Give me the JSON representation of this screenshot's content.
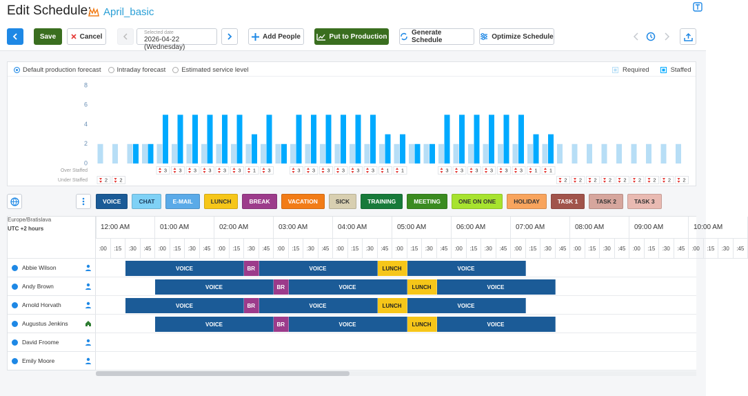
{
  "header": {
    "title": "Edit Schedule:",
    "schedule_name": "April_basic"
  },
  "toolbar": {
    "save": "Save",
    "cancel": "Cancel",
    "selected_date_label": "Selected date",
    "selected_date": "2026-04-22 (Wednesday)",
    "add_people": "Add People",
    "put_to_production": "Put to Production",
    "generate_schedule": "Generate Schedule",
    "optimize_schedule": "Optimize Schedule"
  },
  "forecast_options": {
    "options": [
      "Default production forecast",
      "Intraday forecast",
      "Estimated service level"
    ],
    "selected": 0
  },
  "chart_data": {
    "type": "bar",
    "ylim": [
      0,
      8
    ],
    "yticks": [
      0,
      2,
      4,
      6,
      8
    ],
    "series": [
      {
        "name": "Required",
        "color": "#b7def6",
        "values": [
          2,
          2,
          2,
          2,
          2,
          2,
          2,
          2,
          2,
          2,
          2,
          2,
          2,
          2,
          2,
          2,
          2,
          2,
          2,
          2,
          2,
          2,
          2,
          2,
          2,
          2,
          2,
          2,
          2,
          2,
          2,
          2,
          2,
          2,
          2,
          2,
          2,
          2,
          2,
          2
        ]
      },
      {
        "name": "Staffed",
        "color": "#00aaff",
        "values": [
          0,
          0,
          2,
          2,
          5,
          5,
          5,
          5,
          5,
          5,
          3,
          5,
          2,
          5,
          5,
          5,
          5,
          5,
          5,
          3,
          3,
          2,
          2,
          5,
          5,
          5,
          5,
          5,
          5,
          3,
          3,
          0,
          0,
          0,
          0,
          0,
          0,
          0,
          0,
          0
        ]
      }
    ],
    "over_staffed": {
      "label": "Over Staffed",
      "values": [
        null,
        null,
        null,
        null,
        3,
        3,
        3,
        3,
        3,
        3,
        1,
        3,
        null,
        3,
        3,
        3,
        3,
        3,
        3,
        1,
        1,
        null,
        null,
        3,
        3,
        3,
        3,
        3,
        3,
        1,
        1,
        null,
        null,
        null,
        null,
        null,
        null,
        null,
        null,
        null
      ]
    },
    "under_staffed": {
      "label": "Under Staffed",
      "values": [
        2,
        2,
        null,
        null,
        null,
        null,
        null,
        null,
        null,
        null,
        null,
        null,
        null,
        null,
        null,
        null,
        null,
        null,
        null,
        null,
        null,
        null,
        null,
        null,
        null,
        null,
        null,
        null,
        null,
        null,
        null,
        2,
        2,
        2,
        2,
        2,
        2,
        2,
        2,
        2
      ]
    }
  },
  "activities": [
    {
      "name": "VOICE",
      "color": "#1b5b97",
      "text": "#ffffff"
    },
    {
      "name": "CHAT",
      "color": "#7fd1f6",
      "text": "#1b3b5a"
    },
    {
      "name": "E-MAIL",
      "color": "#5aaae8",
      "text": "#ffffff"
    },
    {
      "name": "LUNCH",
      "color": "#f6c619",
      "text": "#333333"
    },
    {
      "name": "BREAK",
      "color": "#9c3b8b",
      "text": "#ffffff"
    },
    {
      "name": "VACATION",
      "color": "#f27c17",
      "text": "#ffffff"
    },
    {
      "name": "SICK",
      "color": "#d8cfb1",
      "text": "#333333"
    },
    {
      "name": "TRAINING",
      "color": "#177a3a",
      "text": "#ffffff"
    },
    {
      "name": "MEETING",
      "color": "#3a8b20",
      "text": "#ffffff"
    },
    {
      "name": "ONE ON ONE",
      "color": "#a7e32f",
      "text": "#333333"
    },
    {
      "name": "HOLIDAY",
      "color": "#f8a45d",
      "text": "#333333"
    },
    {
      "name": "TASK 1",
      "color": "#a1544b",
      "text": "#ffffff"
    },
    {
      "name": "TASK 2",
      "color": "#d6a69d",
      "text": "#333333"
    },
    {
      "name": "TASK 3",
      "color": "#e9bab2",
      "text": "#333333"
    }
  ],
  "schedule": {
    "timezone": "Europe/Bratislava",
    "utc_offset": "UTC +2 hours",
    "hours": [
      "12:00 AM",
      "01:00 AM",
      "02:00 AM",
      "03:00 AM",
      "04:00 AM",
      "05:00 AM",
      "06:00 AM",
      "07:00 AM",
      "08:00 AM",
      "09:00 AM",
      "10:00 AM"
    ],
    "quarters": [
      ":00",
      ":15",
      ":30",
      ":45"
    ],
    "agents": [
      {
        "name": "Abbie Wilson",
        "icon": "person",
        "shifts": [
          {
            "label": "VOICE",
            "color": "#1b5b97",
            "start": 0.5,
            "end": 2.5
          },
          {
            "label": "BR",
            "color": "#9c3b8b",
            "start": 2.5,
            "end": 2.75
          },
          {
            "label": "VOICE",
            "color": "#1b5b97",
            "start": 2.75,
            "end": 4.75
          },
          {
            "label": "LUNCH",
            "color": "#f6c619",
            "start": 4.75,
            "end": 5.25
          },
          {
            "label": "VOICE",
            "color": "#1b5b97",
            "start": 5.25,
            "end": 7.25
          }
        ]
      },
      {
        "name": "Andy Brown",
        "icon": "person",
        "shifts": [
          {
            "label": "VOICE",
            "color": "#1b5b97",
            "start": 1,
            "end": 3
          },
          {
            "label": "BR",
            "color": "#9c3b8b",
            "start": 3,
            "end": 3.25
          },
          {
            "label": "VOICE",
            "color": "#1b5b97",
            "start": 3.25,
            "end": 5.25
          },
          {
            "label": "LUNCH",
            "color": "#f6c619",
            "start": 5.25,
            "end": 5.75
          },
          {
            "label": "VOICE",
            "color": "#1b5b97",
            "start": 5.75,
            "end": 7.75
          }
        ]
      },
      {
        "name": "Arnold Horvath",
        "icon": "person",
        "shifts": [
          {
            "label": "VOICE",
            "color": "#1b5b97",
            "start": 0.5,
            "end": 2.5
          },
          {
            "label": "BR",
            "color": "#9c3b8b",
            "start": 2.5,
            "end": 2.75
          },
          {
            "label": "VOICE",
            "color": "#1b5b97",
            "start": 2.75,
            "end": 4.75
          },
          {
            "label": "LUNCH",
            "color": "#f6c619",
            "start": 4.75,
            "end": 5.25
          },
          {
            "label": "VOICE",
            "color": "#1b5b97",
            "start": 5.25,
            "end": 7.25
          }
        ]
      },
      {
        "name": "Augustus Jenkins",
        "icon": "home",
        "shifts": [
          {
            "label": "VOICE",
            "color": "#1b5b97",
            "start": 1,
            "end": 3
          },
          {
            "label": "BR",
            "color": "#9c3b8b",
            "start": 3,
            "end": 3.25
          },
          {
            "label": "VOICE",
            "color": "#1b5b97",
            "start": 3.25,
            "end": 5.25
          },
          {
            "label": "LUNCH",
            "color": "#f6c619",
            "start": 5.25,
            "end": 5.75
          },
          {
            "label": "VOICE",
            "color": "#1b5b97",
            "start": 5.75,
            "end": 7.75
          }
        ]
      },
      {
        "name": "David Froome",
        "icon": "person",
        "shifts": []
      },
      {
        "name": "Emily Moore",
        "icon": "person",
        "shifts": []
      }
    ]
  }
}
